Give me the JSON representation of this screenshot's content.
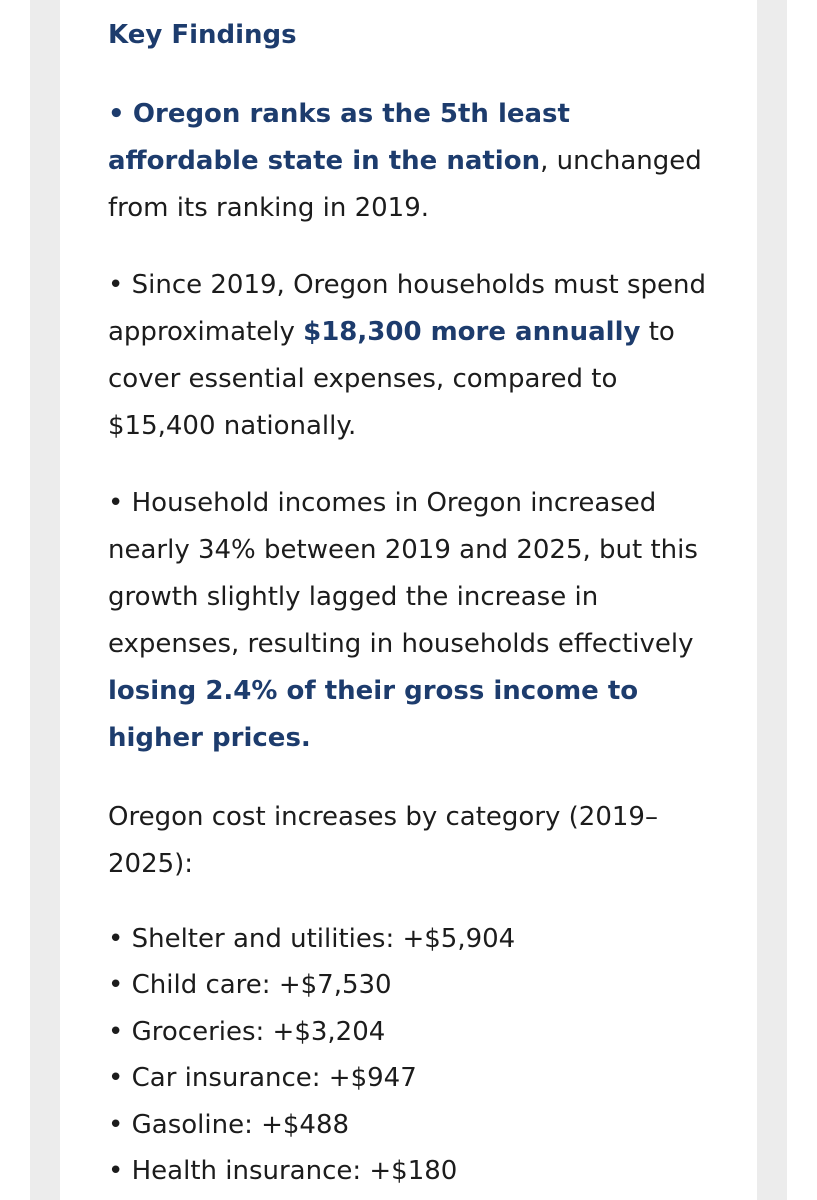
{
  "heading": "Key Findings",
  "bullet_char": "•",
  "finding1": {
    "highlight": "Oregon ranks as the 5th least affordable state in the nation",
    "rest": ", unchanged from its ranking in 2019."
  },
  "finding2": {
    "before": "Since 2019, Oregon households must spend approximately ",
    "highlight": "$18,300 more annually",
    "after": " to cover essential expenses, compared to $15,400 nationally."
  },
  "finding3": {
    "before": "Household incomes in Oregon increased nearly 34% between 2019 and 2025, but this growth slightly lagged the increase in expenses, resulting in households effectively ",
    "highlight": "losing 2.4% of their gross income to higher prices."
  },
  "categories_intro": "Oregon cost increases by category (2019–2025):",
  "categories": [
    "Shelter and utilities: +$5,904",
    "Child care: +$7,530",
    "Groceries: +$3,204",
    "Car insurance: +$947",
    "Gasoline: +$488",
    "Health insurance: +$180"
  ],
  "colors": {
    "accent": "#1d3c6d",
    "text": "#1c1c1c",
    "background": "#ffffff",
    "frame": "#ececec"
  }
}
